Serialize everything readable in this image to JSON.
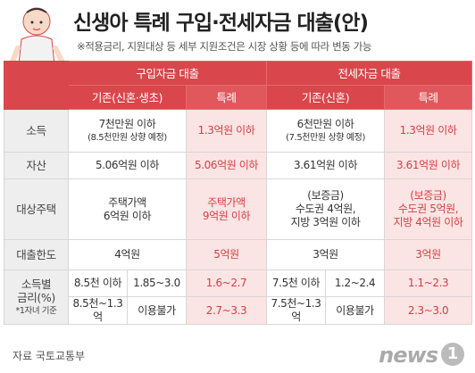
{
  "title": "신생아 특례 구입·전세자금 대출(안)",
  "subtitle": "※적용금리, 지원대상 등 세부 지원조건은 시장 상황 등에 따라 변동 가능",
  "headers": {
    "purchase": "구입자금 대출",
    "jeonse": "전세자금 대출",
    "purchase_existing": "기존(신혼·생초)",
    "purchase_special": "특례",
    "jeonse_existing": "기존(신혼)",
    "jeonse_special": "특례"
  },
  "rows": {
    "income": {
      "label": "소득",
      "purchase_existing_main": "7천만원 이하",
      "purchase_existing_note": "(8.5천만원 상향 예정)",
      "purchase_special": "1.3억원 이하",
      "jeonse_existing_main": "6천만원 이하",
      "jeonse_existing_note": "(7.5천만원 상향 예정)",
      "jeonse_special": "1.3억원 이하"
    },
    "assets": {
      "label": "자산",
      "purchase_existing": "5.06억원 이하",
      "purchase_special": "5.06억원 이하",
      "jeonse_existing": "3.61억원 이하",
      "jeonse_special": "3.61억원 이하"
    },
    "target": {
      "label": "대상주택",
      "purchase_existing_l1": "주택가액",
      "purchase_existing_l2": "6억원 이하",
      "purchase_special_l1": "주택가액",
      "purchase_special_l2": "9억원 이하",
      "jeonse_existing_l1": "(보증금)",
      "jeonse_existing_l2": "수도권 4억원,",
      "jeonse_existing_l3": "지방 3억원 이하",
      "jeonse_special_l1": "(보증금)",
      "jeonse_special_l2": "수도권 5억원,",
      "jeonse_special_l3": "지방 4억원 이하"
    },
    "limit": {
      "label": "대출한도",
      "purchase_existing": "4억원",
      "purchase_special": "5억원",
      "jeonse_existing": "3억원",
      "jeonse_special": "3억원"
    },
    "rate": {
      "label_l1": "소득별",
      "label_l2": "금리(%)",
      "label_note": "*1자녀 기준",
      "row1": {
        "purchase_income": "8.5천 이하",
        "purchase_rate": "1.85~3.0",
        "purchase_special": "1.6~2.7",
        "jeonse_income": "7.5천 이하",
        "jeonse_rate": "1.2~2.4",
        "jeonse_special": "1.1~2.3"
      },
      "row2": {
        "purchase_income": "8.5천~1.3억",
        "purchase_rate": "이용불가",
        "purchase_special": "2.7~3.3",
        "jeonse_income": "7.5천~1.3억",
        "jeonse_rate": "이용불가",
        "jeonse_special": "2.3~3.0"
      }
    }
  },
  "source": "자료  국토교통부",
  "logo": {
    "text": "news",
    "mark": "1"
  },
  "colors": {
    "accent": "#d9464b",
    "special_bg": "#fbe4e4",
    "special_text": "#d33f43"
  }
}
